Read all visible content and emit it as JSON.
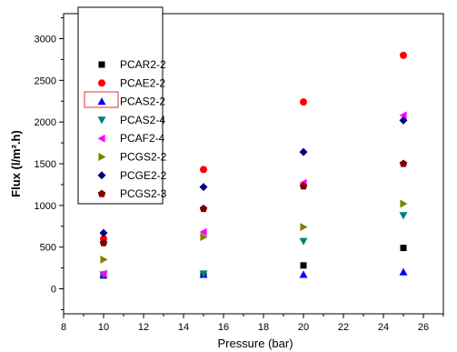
{
  "chart_data": {
    "type": "scatter",
    "xlabel": "Pressure (bar)",
    "ylabel": "Flux (l/m².h)",
    "xlim": [
      8,
      27
    ],
    "ylim": [
      -300,
      3300
    ],
    "x_ticks": [
      "8",
      "10",
      "12",
      "14",
      "16",
      "18",
      "20",
      "22",
      "24",
      "26"
    ],
    "y_ticks": [
      "0",
      "500",
      "1000",
      "1500",
      "2000",
      "2500",
      "3000"
    ],
    "x": [
      10,
      15,
      20,
      25
    ],
    "legend_position": "top-left",
    "series": [
      {
        "name": "PCAR2-2",
        "marker": "square",
        "color": "#000000",
        "values": [
          160,
          180,
          280,
          490
        ]
      },
      {
        "name": "PCAE2-2",
        "marker": "circle",
        "color": "#ff0000",
        "values": [
          600,
          1430,
          2240,
          2800
        ]
      },
      {
        "name": "PCAS2-2",
        "marker": "triangle-up",
        "color": "#0000ff",
        "values": [
          170,
          170,
          170,
          200
        ]
      },
      {
        "name": "PCAS2-4",
        "marker": "triangle-down",
        "color": "#008080",
        "values": [
          170,
          180,
          570,
          880
        ]
      },
      {
        "name": "PCAF2-4",
        "marker": "triangle-left",
        "color": "#ff00ff",
        "values": [
          180,
          680,
          1270,
          2080
        ]
      },
      {
        "name": "PCGS2-2",
        "marker": "triangle-right",
        "color": "#808000",
        "values": [
          350,
          620,
          740,
          1020
        ]
      },
      {
        "name": "PCGE2-2",
        "marker": "diamond",
        "color": "#000080",
        "values": [
          670,
          1220,
          1640,
          2020
        ]
      },
      {
        "name": "PCGS2-3",
        "marker": "pentagon",
        "color": "#800000",
        "values": [
          550,
          960,
          1230,
          1500
        ]
      }
    ]
  }
}
